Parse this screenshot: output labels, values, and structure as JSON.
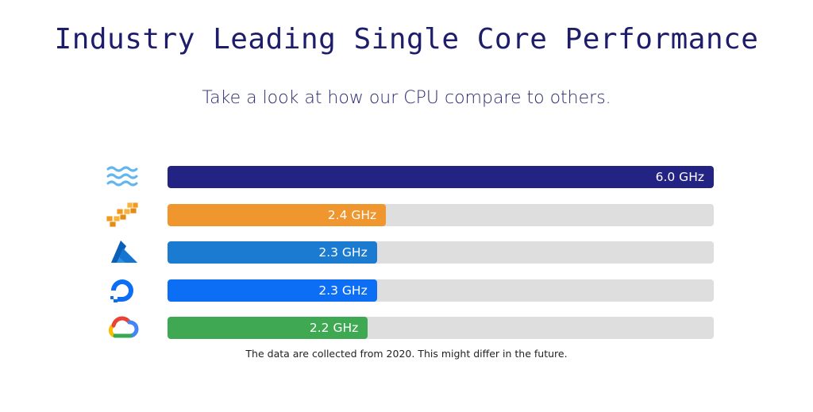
{
  "header": {
    "title": "Industry Leading Single Core Performance",
    "subtitle": "Take a look at how our CPU compare to others."
  },
  "colors": {
    "title": "#1d1d6b",
    "subtitle": "#2a2a6e",
    "track": "#dedede"
  },
  "chart_data": {
    "type": "bar",
    "orientation": "horizontal",
    "unit": "GHz",
    "xlim": [
      0,
      6.0
    ],
    "grid": false,
    "bars": [
      {
        "icon": "waves-logo-icon",
        "value": 6.0,
        "label": "6.0 GHz",
        "color": "#232384"
      },
      {
        "icon": "aws-cubes-logo-icon",
        "value": 2.4,
        "label": "2.4 GHz",
        "color": "#f0962e"
      },
      {
        "icon": "azure-logo-icon",
        "value": 2.3,
        "label": "2.3 GHz",
        "color": "#1a7bd0"
      },
      {
        "icon": "digitalocean-logo-icon",
        "value": 2.3,
        "label": "2.3 GHz",
        "color": "#0c6ef5"
      },
      {
        "icon": "google-cloud-logo-icon",
        "value": 2.2,
        "label": "2.2 GHz",
        "color": "#3ea853"
      }
    ]
  },
  "footnote": "The data are collected from 2020. This might differ in the future."
}
